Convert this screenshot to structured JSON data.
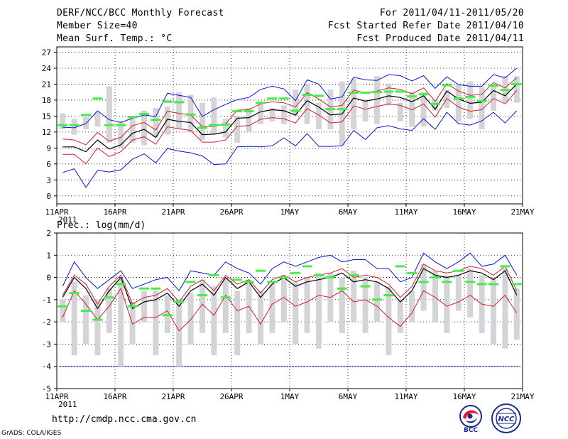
{
  "header": {
    "title": "DERF/NCC/BCC Monthly Forecast",
    "member_size": "Member Size=40",
    "variable": "Mean Surf. Temp.: °C",
    "forecast_period": "For 2011/04/11-2011/05/20",
    "start_date": "Fcst Started Refer Date 2011/04/10",
    "produced_date": "Fcst Produced Date 2011/04/11"
  },
  "footer": {
    "url": "http://cmdp.ncc.cma.gov.cn",
    "grads": "GrADS: COLA/IGES",
    "logo1_text": "BCC",
    "logo2_text": "NCC"
  },
  "colors": {
    "box": "#d4d4d8",
    "mean": "#000000",
    "ci": "#cc1f2e",
    "extreme": "#0a14d0",
    "obs": "#44ee44",
    "baseline": "#000080"
  },
  "chart_data": [
    {
      "type": "line",
      "title": "Mean Surf. Temp.: °C",
      "xlabel": "",
      "ylabel": "",
      "x_ticks": [
        "11APR",
        "16APR",
        "21APR",
        "26APR",
        "1MAY",
        "6MAY",
        "11MAY",
        "16MAY",
        "21MAY"
      ],
      "year_label": "2011",
      "ylim": [
        -1.5,
        28
      ],
      "y_ticks": [
        0,
        3,
        6,
        9,
        12,
        15,
        18,
        21,
        24,
        27
      ],
      "days": 40,
      "series": [
        {
          "name": "ensemble_mean",
          "values": [
            9.2,
            9.2,
            8.3,
            10.5,
            8.8,
            9.6,
            11.8,
            12.5,
            11.0,
            14.4,
            14.0,
            13.8,
            11.5,
            11.6,
            12.0,
            14.6,
            14.7,
            15.8,
            16.2,
            16.0,
            15.2,
            17.9,
            16.7,
            15.2,
            15.4,
            18.4,
            17.8,
            18.2,
            18.8,
            18.5,
            17.7,
            18.8,
            16.3,
            19.7,
            18.2,
            17.4,
            17.6,
            19.8,
            18.8,
            21.0
          ]
        },
        {
          "name": "upper_ci",
          "values": [
            10.7,
            10.5,
            9.6,
            11.9,
            10.3,
            11.0,
            13.2,
            13.8,
            12.4,
            15.9,
            15.5,
            15.2,
            13.0,
            13.1,
            13.5,
            16.1,
            16.2,
            17.3,
            17.7,
            17.5,
            16.7,
            19.4,
            18.2,
            16.7,
            17.0,
            19.9,
            19.3,
            19.7,
            20.3,
            20.0,
            19.2,
            20.3,
            17.8,
            21.1,
            19.7,
            18.9,
            19.1,
            21.3,
            20.3,
            22.2
          ]
        },
        {
          "name": "lower_ci",
          "values": [
            7.8,
            7.8,
            6.0,
            9.0,
            7.4,
            8.3,
            10.5,
            11.1,
            9.7,
            13.0,
            12.6,
            12.3,
            10.1,
            10.1,
            10.5,
            13.1,
            13.2,
            14.4,
            14.7,
            14.5,
            13.7,
            16.4,
            15.2,
            13.7,
            13.9,
            16.9,
            16.3,
            16.8,
            17.3,
            17.0,
            16.2,
            17.3,
            14.8,
            18.3,
            16.7,
            15.9,
            16.2,
            18.3,
            17.3,
            19.8
          ]
        },
        {
          "name": "ensemble_max",
          "values": [
            12.9,
            12.8,
            13.6,
            16.0,
            14.3,
            13.8,
            14.6,
            15.2,
            14.9,
            19.3,
            18.9,
            18.5,
            14.9,
            16.2,
            17.2,
            18.1,
            18.5,
            20.0,
            20.6,
            20.1,
            17.9,
            21.8,
            21.0,
            18.2,
            18.6,
            22.3,
            21.8,
            21.7,
            22.8,
            22.6,
            21.6,
            22.6,
            20.2,
            22.4,
            20.9,
            20.6,
            20.6,
            22.8,
            22.2,
            24.0
          ]
        },
        {
          "name": "ensemble_min",
          "values": [
            4.4,
            5.1,
            1.6,
            4.8,
            4.5,
            4.9,
            6.9,
            7.9,
            6.2,
            8.9,
            8.4,
            8.1,
            7.5,
            5.9,
            6.0,
            9.2,
            9.3,
            9.2,
            9.4,
            10.9,
            9.4,
            11.7,
            9.3,
            9.3,
            9.4,
            12.3,
            10.6,
            12.8,
            13.2,
            12.6,
            12.3,
            14.5,
            12.5,
            15.7,
            13.6,
            13.3,
            14.1,
            15.7,
            13.7,
            16.0
          ]
        },
        {
          "name": "box_top",
          "values": [
            15.5,
            14.5,
            14.8,
            15.8,
            20.6,
            14.0,
            14.5,
            16.0,
            16.5,
            16.8,
            19.5,
            19.0,
            17.5,
            18.5,
            14.5,
            15.0,
            16.5,
            17.5,
            16.5,
            17.0,
            20.0,
            21.0,
            17.5,
            20.0,
            21.5,
            22.0,
            18.0,
            22.5,
            21.0,
            17.5,
            19.5,
            19.5,
            18.0,
            20.0,
            21.0,
            21.5,
            20.5,
            21.0,
            22.5,
            22.5
          ]
        },
        {
          "name": "box_bottom",
          "values": [
            12.5,
            11.5,
            12.5,
            13.0,
            10.0,
            9.0,
            10.0,
            9.5,
            11.0,
            11.5,
            12.5,
            12.0,
            10.5,
            11.5,
            11.0,
            10.0,
            12.0,
            13.5,
            14.0,
            13.5,
            15.0,
            13.5,
            12.5,
            12.5,
            9.5,
            12.5,
            14.0,
            13.5,
            17.0,
            14.0,
            13.0,
            13.0,
            16.0,
            16.5,
            14.0,
            14.5,
            12.5,
            16.0,
            17.5,
            17.5
          ]
        },
        {
          "name": "observation",
          "values": [
            13.3,
            13.3,
            15.2,
            18.3,
            13.3,
            13.3,
            14.8,
            15.4,
            14.3,
            17.7,
            17.6,
            15.3,
            12.8,
            13.3,
            13.4,
            15.9,
            15.9,
            17.5,
            18.3,
            18.3,
            16.0,
            19.0,
            18.8,
            16.3,
            16.3,
            19.4,
            19.4,
            19.5,
            19.6,
            19.6,
            18.7,
            19.1,
            17.3,
            20.8,
            18.3,
            18.6,
            17.8,
            20.7,
            19.9,
            21.0
          ]
        }
      ]
    },
    {
      "type": "line",
      "title": "Prec.: log(mm/d)",
      "xlabel": "",
      "ylabel": "",
      "x_ticks": [
        "11APR",
        "16APR",
        "21APR",
        "26APR",
        "1MAY",
        "6MAY",
        "11MAY",
        "16MAY",
        "21MAY"
      ],
      "year_label": "2011",
      "ylim": [
        -5,
        2
      ],
      "y_ticks": [
        -5,
        -4,
        -3,
        -2,
        -1,
        0,
        1,
        2
      ],
      "baseline": -4,
      "days": 40,
      "series": [
        {
          "name": "ensemble_mean",
          "values": [
            -0.9,
            0.0,
            -0.5,
            -1.4,
            -0.6,
            0.0,
            -1.4,
            -1.1,
            -1.0,
            -0.7,
            -1.3,
            -0.6,
            -0.3,
            -0.8,
            0.0,
            -0.5,
            -0.2,
            -0.9,
            -0.3,
            0.0,
            -0.4,
            -0.2,
            -0.1,
            0.0,
            0.2,
            -0.2,
            -0.1,
            -0.2,
            -0.5,
            -1.1,
            -0.6,
            0.4,
            0.1,
            0.0,
            0.1,
            0.3,
            0.2,
            -0.1,
            0.3,
            -0.8
          ]
        },
        {
          "name": "upper_ci",
          "values": [
            -0.8,
            0.1,
            -0.3,
            -1.2,
            -0.4,
            0.1,
            -1.2,
            -0.9,
            -0.8,
            -0.5,
            -1.1,
            -0.4,
            -0.1,
            -0.6,
            0.1,
            -0.3,
            -0.1,
            -0.7,
            -0.1,
            0.1,
            -0.2,
            0.0,
            0.1,
            0.2,
            0.4,
            0.0,
            0.1,
            0.0,
            -0.3,
            -0.9,
            -0.4,
            0.6,
            0.3,
            0.2,
            0.3,
            0.5,
            0.4,
            0.1,
            0.5,
            -0.6
          ]
        },
        {
          "name": "lower_ci",
          "values": [
            -1.8,
            -0.6,
            -1.2,
            -1.9,
            -1.3,
            -0.5,
            -2.1,
            -1.8,
            -1.8,
            -1.5,
            -2.4,
            -1.9,
            -1.2,
            -1.7,
            -0.8,
            -1.5,
            -1.3,
            -2.1,
            -1.2,
            -0.9,
            -1.3,
            -1.1,
            -0.8,
            -0.9,
            -0.6,
            -1.1,
            -1.0,
            -1.3,
            -1.8,
            -2.2,
            -1.6,
            -0.6,
            -0.9,
            -1.3,
            -1.1,
            -0.8,
            -1.2,
            -1.3,
            -0.8,
            -1.6
          ]
        },
        {
          "name": "ensemble_max",
          "values": [
            -0.4,
            0.7,
            0.0,
            -0.5,
            -0.1,
            0.3,
            -0.5,
            -0.3,
            -0.1,
            0.0,
            -0.6,
            0.3,
            0.2,
            0.1,
            0.7,
            0.4,
            0.2,
            -0.3,
            0.4,
            0.7,
            0.5,
            0.7,
            0.9,
            1.0,
            0.7,
            0.8,
            0.8,
            0.4,
            0.4,
            -0.2,
            0.0,
            1.1,
            0.7,
            0.4,
            0.7,
            1.1,
            0.5,
            0.6,
            1.0,
            0.1
          ]
        },
        {
          "name": "box_top",
          "values": [
            -1.0,
            -0.2,
            -0.8,
            -1.0,
            -0.5,
            -0.1,
            -1.1,
            -0.6,
            -0.6,
            -0.8,
            -1.0,
            -0.7,
            -0.1,
            -0.4,
            0.0,
            -0.6,
            -0.1,
            -0.6,
            -0.3,
            0.1,
            -0.2,
            0.0,
            0.2,
            0.2,
            0.0,
            0.3,
            0.0,
            -0.2,
            -0.4,
            -1.0,
            -0.6,
            0.6,
            0.3,
            0.1,
            0.1,
            0.4,
            0.1,
            0.0,
            0.4,
            -0.5
          ]
        },
        {
          "name": "box_bottom",
          "values": [
            -2.0,
            -3.5,
            -3.0,
            -3.5,
            -2.5,
            -4.0,
            -3.0,
            -2.0,
            -3.5,
            -2.5,
            -4.0,
            -3.0,
            -2.5,
            -3.5,
            -2.5,
            -3.5,
            -2.5,
            -3.0,
            -2.5,
            -2.0,
            -3.0,
            -2.5,
            -3.2,
            -2.0,
            -2.5,
            -2.0,
            -2.5,
            -2.0,
            -3.5,
            -2.5,
            -2.0,
            -1.5,
            -2.0,
            -2.5,
            -1.5,
            -1.8,
            -2.5,
            -3.0,
            -3.2,
            -2.8
          ]
        },
        {
          "name": "observation",
          "values": [
            -1.3,
            -0.7,
            -1.5,
            -1.9,
            -0.9,
            -0.3,
            -1.3,
            -0.5,
            -0.5,
            -1.7,
            -1.1,
            -0.2,
            -0.8,
            0.1,
            -0.9,
            -0.1,
            -0.2,
            0.3,
            -0.2,
            0.0,
            0.2,
            0.5,
            0.1,
            0.0,
            -0.5,
            0.1,
            -0.4,
            -1.0,
            -0.8,
            0.5,
            0.2,
            -0.2,
            0.0,
            -0.2,
            0.3,
            -0.2,
            -0.3,
            -0.3,
            0.5,
            -0.3
          ]
        }
      ]
    }
  ]
}
